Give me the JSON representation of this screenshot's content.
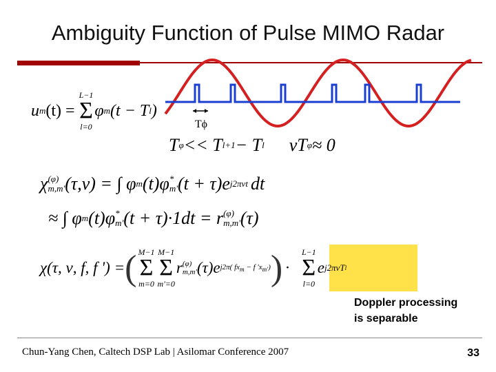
{
  "title": "Ambiguity Function of Pulse MIMO Radar",
  "pulse_label": "Tϕ",
  "equations": [
    [
      "u",
      "m",
      "(t) =",
      "L−1",
      "Σ",
      "l=0",
      "φ",
      "m",
      "(t − T",
      "l",
      ")"
    ],
    [
      "T",
      "φ",
      " << T",
      "l+1",
      " − T",
      "l",
      "νT",
      "φ",
      " ≈ 0"
    ],
    [
      "χ",
      "(φ)",
      "m,m'",
      "(τ,ν) = ∫ φ",
      "m",
      "(t)φ",
      "*",
      "m'",
      "(t + τ)e",
      "j2πνt",
      "dt"
    ],
    [
      "≈ ∫ φ",
      "m",
      "(t)φ",
      "*",
      "m'",
      "(t + τ)·1dt = r",
      "(φ)",
      "m,m'",
      "(τ)"
    ],
    [
      "χ(τ, ν, f, f ') =",
      "(",
      "M−1",
      "Σ",
      "m=0",
      "M−1",
      "Σ",
      "m'=0",
      "r",
      "(φ)",
      "m,m'",
      "(τ)e",
      "j2π( fx",
      "m",
      " − f 'x",
      "m'",
      ")",
      ")",
      "·",
      "L−1",
      "Σ",
      "l=0",
      "e",
      "j2πνT",
      "l"
    ]
  ],
  "callout": [
    "Doppler processing",
    "is separable"
  ],
  "footer": "Chun-Yang Chen, Caltech DSP Lab | Asilomar Conference 2007",
  "page_number": "33"
}
